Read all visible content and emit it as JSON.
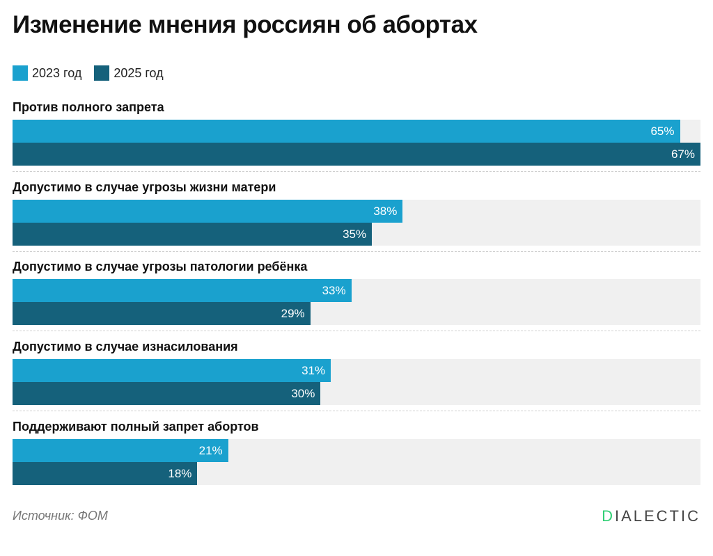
{
  "title": "Изменение мнения россиян об абортах",
  "source": "Источник: ФОМ",
  "logo": "DIALECTIC",
  "colors": {
    "2023": "#1aa1ce",
    "2025": "#15617b",
    "track": "#f0f0f0"
  },
  "chart_data": {
    "type": "bar",
    "orientation": "horizontal",
    "title": "Изменение мнения россиян об абортах",
    "categories": [
      "Против полного запрета",
      "Допустимо в случае угрозы жизни матери",
      "Допустимо в случае угрозы патологии ребёнка",
      "Допустимо в случае изнасилования",
      "Поддерживают полный запрет абортов"
    ],
    "series": [
      {
        "name": "2023 год",
        "values": [
          65,
          38,
          33,
          31,
          21
        ]
      },
      {
        "name": "2025 год",
        "values": [
          67,
          35,
          29,
          30,
          18
        ]
      }
    ],
    "unit": "%",
    "xlim": [
      0,
      67
    ],
    "legend": "top-left",
    "grid": false
  }
}
